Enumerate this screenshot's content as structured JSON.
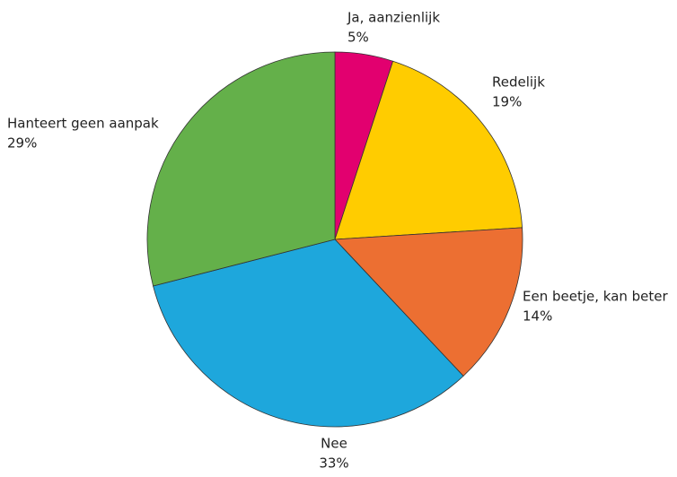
{
  "chart_data": {
    "type": "pie",
    "categories": [
      "Ja, aanzienlijk",
      "Redelijk",
      "Een beetje, kan beter",
      "Nee",
      "Hanteert geen aanpak"
    ],
    "values": [
      5,
      19,
      14,
      33,
      29
    ],
    "value_labels": [
      "5%",
      "19%",
      "14%",
      "33%",
      "29%"
    ],
    "colors": [
      "#e2006f",
      "#ffcc00",
      "#ec6f32",
      "#1ea7dc",
      "#64b04a"
    ]
  }
}
